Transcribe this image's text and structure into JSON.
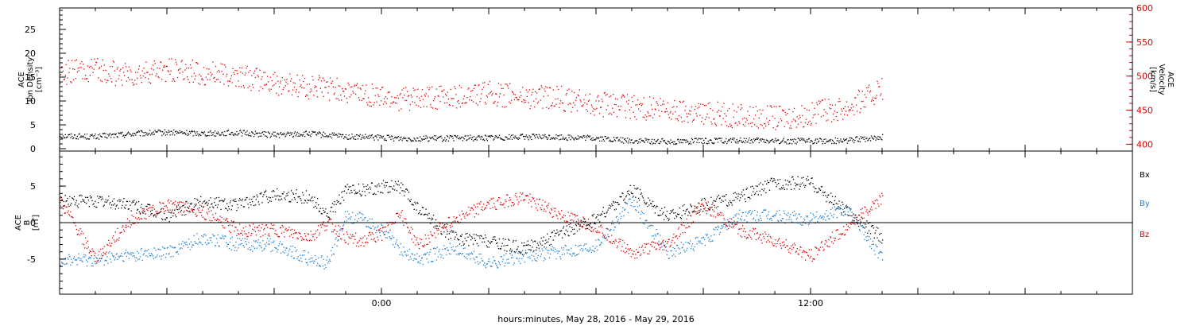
{
  "chart_data": {
    "type": "scatter",
    "xlabel": "hours:minutes, May 28, 2016 - May 29, 2016",
    "x_range_hours": [
      -9,
      21
    ],
    "x_tick_labels": [
      {
        "hour": 0,
        "label": "0:00"
      },
      {
        "hour": 12,
        "label": "12:00"
      }
    ],
    "panels": [
      {
        "id": "plasma",
        "ylabel_lines": [
          "ACE",
          "Ion Density",
          "[cm⁻³]"
        ],
        "ylim": [
          -0.5,
          29.5
        ],
        "yticks": [
          0,
          5,
          10,
          15,
          20,
          25
        ],
        "right_axis": {
          "ylabel_lines": [
            "ACE",
            "Velocity",
            "[km/s]"
          ],
          "ylim": [
            390,
            600
          ],
          "yticks": [
            400,
            450,
            500,
            550,
            600
          ],
          "color": "#e00000"
        },
        "series": [
          {
            "name": "Ion Density",
            "color": "#000000",
            "axis": "left",
            "x": [
              -9,
              -8,
              -7,
              -6,
              -5,
              -4,
              -3,
              -2,
              -1,
              0,
              1,
              2,
              3,
              4,
              5,
              6,
              7,
              8,
              9,
              10,
              11,
              12,
              13,
              14
            ],
            "y": [
              2.8,
              2.6,
              3.2,
              3.5,
              3.3,
              3.4,
              3.0,
              3.2,
              2.6,
              2.4,
              2.2,
              2.3,
              2.4,
              2.6,
              2.5,
              2.3,
              1.7,
              1.6,
              1.7,
              1.8,
              1.7,
              1.7,
              1.8,
              2.5
            ]
          },
          {
            "name": "Velocity",
            "color": "#e00000",
            "axis": "right",
            "x": [
              -9,
              -8,
              -7,
              -6,
              -5,
              -4,
              -3,
              -2,
              -1,
              0,
              1,
              2,
              3,
              4,
              5,
              6,
              7,
              8,
              9,
              10,
              11,
              12,
              13,
              14
            ],
            "y": [
              505,
              510,
              500,
              510,
              505,
              500,
              490,
              485,
              480,
              470,
              465,
              470,
              475,
              470,
              468,
              460,
              455,
              450,
              447,
              442,
              440,
              445,
              455,
              480
            ]
          }
        ]
      },
      {
        "id": "magnetic",
        "ylabel_lines": [
          "ACE",
          "B",
          "[nT]"
        ],
        "ylim": [
          -9.8,
          9.8
        ],
        "yticks": [
          -5,
          0,
          5
        ],
        "zero_line": true,
        "legend_position": "right",
        "series": [
          {
            "name": "Bx",
            "color": "#000000",
            "x": [
              -9,
              -8,
              -7,
              -6,
              -5,
              -4,
              -3,
              -2,
              -1.5,
              -1,
              -0.5,
              0,
              0.5,
              1,
              2,
              3,
              4,
              5,
              6,
              7,
              8,
              9,
              10,
              11,
              12,
              13,
              14
            ],
            "y": [
              3.0,
              3.0,
              2.5,
              1.0,
              3.0,
              2.5,
              4.0,
              3.5,
              1.0,
              4.5,
              4.5,
              5.0,
              5.0,
              2.0,
              -2.0,
              -2.5,
              -3.5,
              -1.5,
              0.5,
              4.5,
              1.0,
              2.5,
              3.5,
              5.5,
              5.5,
              1.5,
              -2.0
            ]
          },
          {
            "name": "By",
            "color": "#1a7fd6",
            "x": [
              -9,
              -8,
              -7,
              -6,
              -5,
              -4,
              -3,
              -2,
              -1.5,
              -1,
              -0.5,
              0,
              0.5,
              1,
              2,
              3,
              4,
              5,
              6,
              7,
              8,
              9,
              10,
              11,
              12,
              13,
              14
            ],
            "y": [
              -5.0,
              -5.0,
              -4.5,
              -4.0,
              -2.0,
              -3.0,
              -3.0,
              -5.0,
              -5.5,
              1.0,
              0.5,
              -1.0,
              -3.5,
              -5.0,
              -3.5,
              -5.5,
              -4.5,
              -4.0,
              -3.0,
              3.0,
              -4.0,
              -2.5,
              1.0,
              1.0,
              0.5,
              2.0,
              -5.0
            ]
          },
          {
            "name": "Bz",
            "color": "#e00000",
            "x": [
              -9,
              -8,
              -7,
              -6,
              -5,
              -4,
              -3,
              -2,
              -1.5,
              -1,
              -0.5,
              0,
              0.5,
              1,
              2,
              3,
              4,
              5,
              6,
              7,
              8,
              9,
              10,
              11,
              12,
              13,
              14
            ],
            "y": [
              3.0,
              -5.0,
              0.5,
              2.5,
              1.5,
              -1.0,
              -1.0,
              -2.0,
              0.0,
              -2.0,
              -2.5,
              -1.5,
              1.5,
              -3.0,
              0.5,
              2.5,
              3.5,
              1.0,
              -0.5,
              -4.0,
              -3.0,
              2.5,
              -1.0,
              -2.5,
              -4.5,
              -0.5,
              3.5
            ]
          }
        ]
      }
    ]
  }
}
